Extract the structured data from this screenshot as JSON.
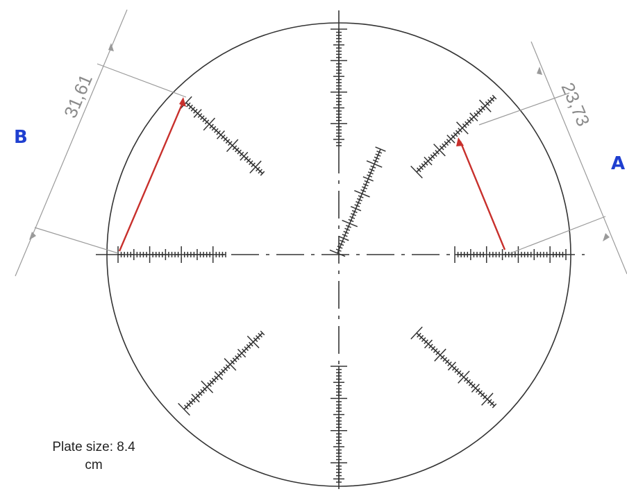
{
  "diagram": {
    "label_b": "B",
    "label_a": "A",
    "dim_b": "31,61",
    "dim_a": "23,73",
    "caption_line1": "Plate size: 8.4",
    "caption_line2": "cm"
  },
  "colors": {
    "line": "#2b2b2b",
    "dimension": "#9a9a9a",
    "red": "#c8302c",
    "label": "#1f3fd0"
  }
}
